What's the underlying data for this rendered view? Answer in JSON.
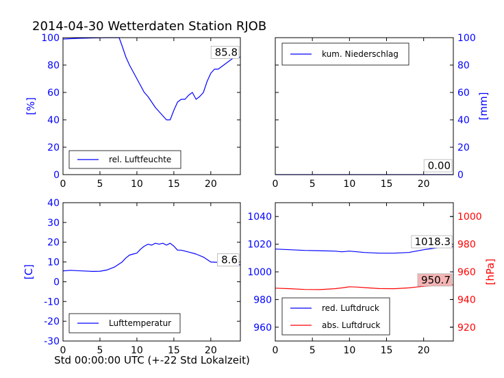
{
  "figure_title": "2014-04-30 Wetterdaten Station RJOB",
  "xlabel": "Std 00:00:00 UTC (+-22 Std Lokalzeit)",
  "colors": {
    "blue": "#0000ff",
    "red": "#ff0000",
    "black": "#000000"
  },
  "chart_data": [
    {
      "id": "humidity",
      "type": "line",
      "title": "",
      "xlim": [
        0,
        24
      ],
      "ylim": [
        0,
        100
      ],
      "xticks": [
        0,
        5,
        10,
        15,
        20
      ],
      "yticks": [
        0,
        20,
        40,
        60,
        80,
        100
      ],
      "ylabel": "[%]",
      "ylabel_side": "left",
      "tick_color": "#0000ff",
      "legend_position": "lower-left",
      "annotation": {
        "text": "85.8",
        "x": 24,
        "y": 85.8,
        "bg": "#ffffff"
      },
      "series": [
        {
          "name": "rel. Luftfeuchte",
          "color": "#0000ff",
          "x": [
            0,
            2,
            4,
            6,
            7,
            7.6,
            8,
            8.5,
            9,
            9.5,
            10,
            10.5,
            11,
            11.5,
            12,
            12.5,
            13,
            13.5,
            14,
            14.5,
            15,
            15.5,
            16,
            16.5,
            17,
            17.5,
            18,
            18.5,
            19,
            19.5,
            20,
            20.5,
            21,
            21.5,
            22,
            22.5,
            23,
            24
          ],
          "y": [
            99,
            99.5,
            99.8,
            100,
            100,
            100,
            94,
            86,
            80,
            75,
            70,
            65,
            60,
            57,
            53,
            49,
            46,
            43,
            40,
            40,
            47,
            53,
            55,
            55,
            58,
            60,
            55,
            57,
            60,
            68,
            74,
            77,
            77,
            79,
            81,
            83,
            85,
            85.8
          ]
        }
      ]
    },
    {
      "id": "precipitation",
      "type": "line",
      "title": "",
      "xlim": [
        0,
        24
      ],
      "ylim": [
        0,
        100
      ],
      "xticks": [
        0,
        5,
        10,
        15,
        20
      ],
      "yticks": [
        0,
        20,
        40,
        60,
        80,
        100
      ],
      "ylabel": "[mm]",
      "ylabel_side": "right",
      "tick_color": "#0000ff",
      "legend_position": "upper-left",
      "annotation": {
        "text": "0.00",
        "x": 24,
        "y": 0,
        "bg": "#ffffff"
      },
      "series": [
        {
          "name": "kum. Niederschlag",
          "color": "#0000ff",
          "x": [
            0,
            24
          ],
          "y": [
            0,
            0
          ]
        }
      ]
    },
    {
      "id": "temperature",
      "type": "line",
      "title": "",
      "xlim": [
        0,
        24
      ],
      "ylim": [
        -30,
        40
      ],
      "xticks": [
        0,
        5,
        10,
        15,
        20
      ],
      "yticks": [
        -30,
        -20,
        -10,
        0,
        10,
        20,
        30,
        40
      ],
      "ylabel": "[C]",
      "ylabel_side": "left",
      "tick_color": "#0000ff",
      "legend_position": "lower-left",
      "annotation": {
        "text": "8.6",
        "x": 24,
        "y": 8.6,
        "bg": "#ffffff"
      },
      "series": [
        {
          "name": "Lufttemperatur",
          "color": "#0000ff",
          "x": [
            0,
            1,
            2,
            3,
            4,
            5,
            6,
            7,
            8,
            8.5,
            9,
            9.5,
            10,
            10.5,
            11,
            11.5,
            12,
            12.5,
            13,
            13.5,
            14,
            14.5,
            15,
            15.5,
            16,
            17,
            18,
            19,
            20,
            21,
            22,
            23,
            24
          ],
          "y": [
            5.5,
            5.8,
            5.6,
            5.4,
            5.2,
            5.3,
            6,
            7.5,
            10,
            12,
            13.5,
            14,
            14.5,
            16.5,
            18,
            19,
            18.5,
            19.5,
            19,
            19.5,
            18.5,
            19.5,
            18,
            16,
            16,
            15,
            14,
            12.5,
            10,
            9.8,
            9.5,
            9,
            8.6
          ]
        }
      ]
    },
    {
      "id": "pressure",
      "type": "line",
      "title": "",
      "xlim": [
        0,
        24
      ],
      "ylim": [
        950,
        1050
      ],
      "xticks": [
        0,
        5,
        10,
        15,
        20
      ],
      "yticks": [
        960,
        980,
        1000,
        1020,
        1040
      ],
      "tick_color": "#0000ff",
      "ylim_right": [
        910,
        1010
      ],
      "yticks_right": [
        920,
        940,
        960,
        980,
        1000
      ],
      "tick_color_right": "#ff0000",
      "ylabel": "[hPa]",
      "ylabel_side": "right",
      "ylabel_color": "#ff0000",
      "legend_position": "lower-left",
      "annotations": [
        {
          "text": "1018.3",
          "x": 24,
          "y": 1018.3,
          "axis": "left",
          "bg": "#ffffff"
        },
        {
          "text": "950.7",
          "x": 24,
          "y": 950.7,
          "axis": "right",
          "bg": "#f4b4b4"
        }
      ],
      "series": [
        {
          "name": "red. Luftdruck",
          "color": "#0000ff",
          "axis": "left",
          "x": [
            0,
            2,
            4,
            6,
            8,
            9,
            10,
            11,
            12,
            14,
            16,
            18,
            19,
            20,
            21,
            22,
            23,
            24
          ],
          "y": [
            1016.5,
            1016,
            1015.5,
            1015.3,
            1015,
            1014.5,
            1015,
            1014.5,
            1014,
            1013.5,
            1013.5,
            1014,
            1015,
            1016,
            1016.8,
            1017.5,
            1018,
            1018.3
          ]
        },
        {
          "name": "abs. Luftdruck",
          "color": "#ff0000",
          "axis": "right",
          "x": [
            0,
            2,
            4,
            6,
            8,
            9,
            10,
            11,
            12,
            14,
            16,
            18,
            19,
            20,
            21,
            22,
            23,
            24
          ],
          "y": [
            948.2,
            947.8,
            947.3,
            947.2,
            947.8,
            948.4,
            949.2,
            949,
            948.6,
            947.9,
            947.8,
            948.4,
            949,
            949.5,
            949.9,
            950.2,
            950.5,
            950.7
          ]
        }
      ]
    }
  ]
}
